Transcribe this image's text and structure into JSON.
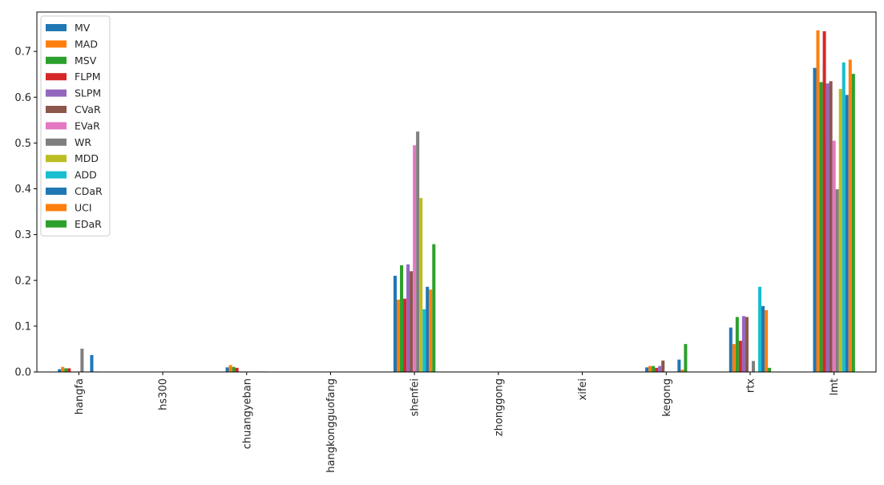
{
  "chart_data": {
    "type": "bar",
    "title": "",
    "xlabel": "",
    "ylabel": "",
    "ylim": [
      0,
      0.786
    ],
    "yticks": [
      0.0,
      0.1,
      0.2,
      0.3,
      0.4,
      0.5,
      0.6,
      0.7
    ],
    "grid": false,
    "legend_position": "top-left",
    "categories": [
      "hangfa",
      "hs300",
      "chuangyeban",
      "hangkongguofang",
      "shenfei",
      "zhonggong",
      "xifei",
      "kegong",
      "rtx",
      "lmt"
    ],
    "series": [
      {
        "name": "MV",
        "color": "#1f77b4",
        "values": [
          0.006,
          0,
          0.01,
          0,
          0.21,
          0,
          0,
          0.01,
          0.097,
          0.664
        ]
      },
      {
        "name": "MAD",
        "color": "#ff7f0e",
        "values": [
          0.011,
          0,
          0.015,
          0,
          0.158,
          0,
          0,
          0.013,
          0.061,
          0.746
        ]
      },
      {
        "name": "MSV",
        "color": "#2ca02c",
        "values": [
          0.008,
          0,
          0.011,
          0,
          0.233,
          0,
          0,
          0.013,
          0.12,
          0.633
        ]
      },
      {
        "name": "FLPM",
        "color": "#d62728",
        "values": [
          0.008,
          0,
          0.009,
          0,
          0.16,
          0,
          0,
          0.009,
          0.068,
          0.744
        ]
      },
      {
        "name": "SLPM",
        "color": "#9467bd",
        "values": [
          0.001,
          0,
          0.001,
          0,
          0.235,
          0,
          0,
          0.013,
          0.122,
          0.63
        ]
      },
      {
        "name": "CVaR",
        "color": "#8c564b",
        "values": [
          0.001,
          0,
          0.001,
          0,
          0.22,
          0,
          0,
          0.025,
          0.12,
          0.635
        ]
      },
      {
        "name": "EVaR",
        "color": "#e377c2",
        "values": [
          0.001,
          0,
          0.001,
          0,
          0.495,
          0,
          0,
          0.001,
          0.001,
          0.505
        ]
      },
      {
        "name": "WR",
        "color": "#7f7f7f",
        "values": [
          0.051,
          0,
          0.001,
          0,
          0.525,
          0,
          0,
          0.001,
          0.024,
          0.399
        ]
      },
      {
        "name": "MDD",
        "color": "#bcbd22",
        "values": [
          0.001,
          0,
          0.001,
          0,
          0.38,
          0,
          0,
          0.001,
          0.001,
          0.618
        ]
      },
      {
        "name": "ADD",
        "color": "#17becf",
        "values": [
          0.001,
          0,
          0.001,
          0,
          0.137,
          0,
          0,
          0.001,
          0.186,
          0.676
        ]
      },
      {
        "name": "CDaR",
        "color": "#1f77b4",
        "values": [
          0.037,
          0,
          0.001,
          0,
          0.186,
          0,
          0,
          0.027,
          0.144,
          0.605
        ]
      },
      {
        "name": "UCI",
        "color": "#ff7f0e",
        "values": [
          0.001,
          0,
          0.001,
          0,
          0.18,
          0,
          0,
          0.005,
          0.135,
          0.682
        ]
      },
      {
        "name": "EDaR",
        "color": "#2ca02c",
        "values": [
          0.001,
          0,
          0.001,
          0,
          0.279,
          0,
          0,
          0.061,
          0.009,
          0.651
        ]
      }
    ]
  }
}
